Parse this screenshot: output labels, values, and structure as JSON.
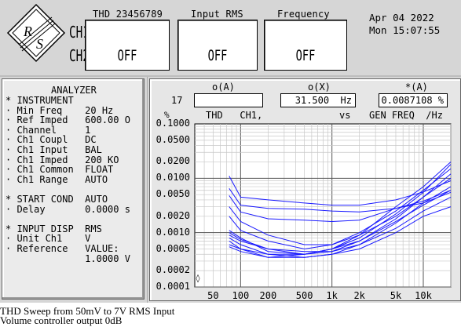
{
  "header": {
    "ch1_label": "CH1",
    "ch2_label": "CH2",
    "meters": [
      {
        "title": "THD 23456789",
        "value": "OFF"
      },
      {
        "title": "Input RMS",
        "value": "OFF"
      },
      {
        "title": "Frequency",
        "value": "OFF"
      }
    ],
    "date": "Apr 04 2022",
    "time": "Mon 15:07:55"
  },
  "analyzer_menu": {
    "title": "ANALYZER",
    "lines": [
      "* INSTRUMENT",
      "· Min Freq    20 Hz",
      "· Ref Imped   600.00 O",
      "· Channel     1",
      "· Ch1 Coupl   DC",
      "· Ch1 Input   BAL",
      "· Ch1 Imped   200 KO",
      "· Ch1 Common  FLOAT",
      "· Ch1 Range   AUTO",
      "",
      "* START COND  AUTO",
      "· Delay       0.0000 s",
      "",
      "* INPUT DISP  RMS",
      "· Unit Ch1    V",
      "· Reference   VALUE:",
      "              1.0000 V"
    ]
  },
  "readouts": {
    "row_label": "17",
    "columns": [
      {
        "head": "o(A)",
        "value": ""
      },
      {
        "head": "o(X)",
        "value": "31.500  Hz"
      },
      {
        "head": "*(A)",
        "value": "0.0087108 %"
      }
    ]
  },
  "graph": {
    "unit": "%",
    "header_left": "THD   CH1,",
    "header_mid": "vs",
    "header_right": "GEN FREQ  /Hz",
    "cursor_marker": "◊"
  },
  "chart_data": {
    "type": "line",
    "title": "THD   CH1,  vs  GEN FREQ  /Hz",
    "xlabel": "GEN FREQ  /Hz",
    "ylabel": "%",
    "xscale": "log",
    "yscale": "log",
    "xlim": [
      31.5,
      20000
    ],
    "ylim": [
      0.0001,
      0.1
    ],
    "grid": true,
    "x_ticks": [
      {
        "v": 50,
        "label": "50"
      },
      {
        "v": 100,
        "label": "100"
      },
      {
        "v": 200,
        "label": "200"
      },
      {
        "v": 500,
        "label": "500"
      },
      {
        "v": 1000,
        "label": "1k"
      },
      {
        "v": 2000,
        "label": "2k"
      },
      {
        "v": 5000,
        "label": "5k"
      },
      {
        "v": 10000,
        "label": "10k"
      }
    ],
    "y_ticks": [
      {
        "v": 0.1,
        "label": "0.1000"
      },
      {
        "v": 0.05,
        "label": "0.0500"
      },
      {
        "v": 0.02,
        "label": "0.0200"
      },
      {
        "v": 0.01,
        "label": "0.0100"
      },
      {
        "v": 0.005,
        "label": "0.0050"
      },
      {
        "v": 0.002,
        "label": "0.0020"
      },
      {
        "v": 0.001,
        "label": "0.0010"
      },
      {
        "v": 0.0005,
        "label": "0.0005"
      },
      {
        "v": 0.0002,
        "label": "0.0002"
      },
      {
        "v": 0.0001,
        "label": "0.0001"
      }
    ],
    "line_color": "#1a1aff",
    "series": [
      {
        "x": [
          75,
          100,
          200,
          500,
          1000,
          2000,
          5000,
          10000,
          20000
        ],
        "y": [
          0.011,
          0.0045,
          0.004,
          0.0035,
          0.0032,
          0.0032,
          0.004,
          0.0056,
          0.009
        ]
      },
      {
        "x": [
          75,
          100,
          200,
          500,
          1000,
          2000,
          5000,
          10000,
          20000
        ],
        "y": [
          0.0065,
          0.0032,
          0.0028,
          0.0027,
          0.0025,
          0.0024,
          0.0028,
          0.0035,
          0.0055
        ]
      },
      {
        "x": [
          75,
          100,
          200,
          500,
          1000,
          2000,
          5000,
          10000,
          20000
        ],
        "y": [
          0.0048,
          0.0024,
          0.0018,
          0.0017,
          0.0016,
          0.0017,
          0.0028,
          0.0038,
          0.006
        ]
      },
      {
        "x": [
          75,
          100,
          200,
          500,
          1000,
          2000,
          5000,
          10000,
          20000
        ],
        "y": [
          0.003,
          0.0016,
          0.0009,
          0.0006,
          0.0006,
          0.0009,
          0.002,
          0.0045,
          0.01
        ]
      },
      {
        "x": [
          75,
          100,
          200,
          500,
          1000,
          2000,
          5000,
          10000,
          20000
        ],
        "y": [
          0.002,
          0.0011,
          0.0007,
          0.0005,
          0.0006,
          0.001,
          0.0025,
          0.006,
          0.015
        ]
      },
      {
        "x": [
          75,
          100,
          200,
          500,
          1000,
          2000,
          5000,
          10000,
          20000
        ],
        "y": [
          0.0011,
          0.0008,
          0.00045,
          0.0004,
          0.0005,
          0.0008,
          0.0022,
          0.0055,
          0.018
        ]
      },
      {
        "x": [
          75,
          100,
          200,
          500,
          1000,
          2000,
          5000,
          10000,
          20000
        ],
        "y": [
          0.001,
          0.00075,
          0.0005,
          0.00045,
          0.00045,
          0.0007,
          0.0018,
          0.0045,
          0.012
        ]
      },
      {
        "x": [
          75,
          100,
          200,
          500,
          1000,
          2000,
          5000,
          10000,
          20000
        ],
        "y": [
          0.0009,
          0.0007,
          0.0005,
          0.0004,
          0.0005,
          0.0009,
          0.003,
          0.007,
          0.02
        ]
      },
      {
        "x": [
          75,
          100,
          200,
          500,
          1000,
          2000,
          5000,
          10000,
          20000
        ],
        "y": [
          0.0008,
          0.0006,
          0.0004,
          0.00035,
          0.0004,
          0.0006,
          0.0015,
          0.0035,
          0.007
        ]
      },
      {
        "x": [
          75,
          100,
          200,
          500,
          1000,
          2000,
          5000,
          10000,
          20000
        ],
        "y": [
          0.0007,
          0.0005,
          0.0004,
          0.0004,
          0.00045,
          0.0006,
          0.0012,
          0.0025,
          0.0045
        ]
      },
      {
        "x": [
          75,
          100,
          200,
          500,
          1000,
          2000,
          5000,
          10000,
          20000
        ],
        "y": [
          0.0006,
          0.0005,
          0.00035,
          0.0004,
          0.0005,
          0.0007,
          0.0016,
          0.0032,
          0.006
        ]
      },
      {
        "x": [
          75,
          100,
          200,
          500,
          1000,
          2000,
          5000,
          10000,
          20000
        ],
        "y": [
          0.00055,
          0.00045,
          0.00035,
          0.00035,
          0.0004,
          0.0005,
          0.001,
          0.002,
          0.003
        ]
      }
    ]
  },
  "caption": {
    "line1": "THD Sweep from 50mV to 7V RMS Input",
    "line2": "Volume controller output 0dB"
  }
}
